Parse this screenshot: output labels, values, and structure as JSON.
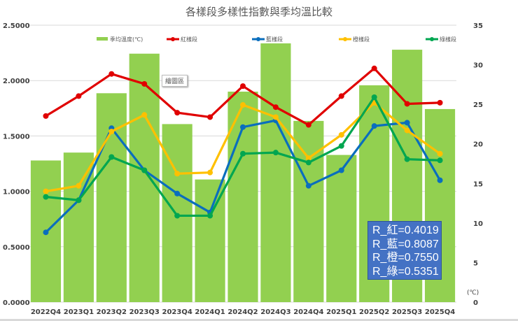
{
  "chart_data": {
    "type": "bar+line",
    "title": "各樣段多樣性指數與季均溫比較",
    "categories": [
      "2022Q4",
      "2023Q1",
      "2023Q2",
      "2023Q3",
      "2023Q4",
      "2024Q1",
      "2024Q2",
      "2024Q3",
      "2024Q4",
      "2025Q1",
      "2025Q2",
      "2025Q3",
      "2025Q4"
    ],
    "bar_series": {
      "name": "季均溫度(℃)",
      "axis": "right",
      "color": "#92d050",
      "values": [
        17.9,
        18.9,
        26.4,
        31.4,
        22.5,
        15.5,
        26.6,
        32.7,
        22.9,
        18.6,
        27.4,
        31.9,
        24.4
      ]
    },
    "series": [
      {
        "name": "紅樣段",
        "axis": "left",
        "color": "#e00000",
        "values": [
          1.68,
          1.86,
          2.06,
          1.97,
          1.71,
          1.67,
          1.95,
          1.76,
          1.6,
          1.86,
          2.11,
          1.79,
          1.8
        ]
      },
      {
        "name": "藍樣段",
        "axis": "left",
        "color": "#0a6ebd",
        "values": [
          0.63,
          0.92,
          1.57,
          1.19,
          0.98,
          0.81,
          1.58,
          1.64,
          1.05,
          1.19,
          1.59,
          1.62,
          1.1
        ]
      },
      {
        "name": "橙樣段",
        "axis": "left",
        "color": "#ffc000",
        "values": [
          1.0,
          1.05,
          1.54,
          1.69,
          1.16,
          1.17,
          1.78,
          1.67,
          1.3,
          1.51,
          1.8,
          1.55,
          1.34
        ]
      },
      {
        "name": "綠樣段",
        "axis": "left",
        "color": "#00a650",
        "values": [
          0.95,
          0.92,
          1.31,
          1.19,
          0.78,
          0.78,
          1.34,
          1.35,
          1.26,
          1.41,
          1.85,
          1.29,
          1.28
        ]
      }
    ],
    "left_axis": {
      "ylim": [
        0,
        2.5
      ],
      "ticks": [
        "0.0000",
        "0.5000",
        "1.0000",
        "1.5000",
        "2.0000",
        "2.5000"
      ]
    },
    "right_axis": {
      "ylim": [
        0,
        35
      ],
      "ticks": [
        "0",
        "5",
        "10",
        "15",
        "20",
        "25",
        "30",
        "35"
      ],
      "unit_label": "(℃)"
    },
    "grid": true,
    "legend_position": "top",
    "annotations": {
      "plot_area_tooltip": "繪圖區",
      "correlation_box": [
        "R_紅=0.4019",
        "R_藍=0.8087",
        "R_橙=0.7550",
        "R_綠=0.5351"
      ]
    }
  }
}
